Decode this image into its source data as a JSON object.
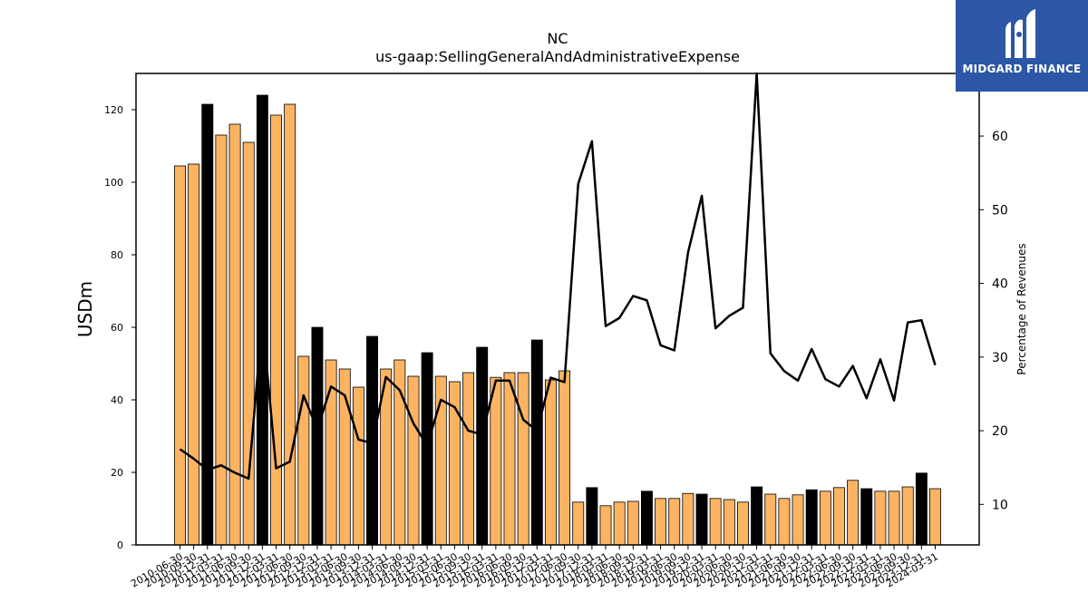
{
  "chart_data": {
    "type": "bar",
    "title": "NC",
    "subtitle": "us-gaap:SellingGeneralAndAdministrativeExpense",
    "ylabel": "USDm",
    "y2label": "Percentage of Revenues",
    "ylim": [
      0,
      130
    ],
    "y2lim": [
      4.5,
      68.5
    ],
    "yticks": [
      0,
      20,
      40,
      60,
      80,
      100,
      120
    ],
    "y2ticks": [
      10,
      20,
      30,
      40,
      50,
      60
    ],
    "categories": [
      "2010-06-30",
      "2010-09-30",
      "2010-12-31",
      "2011-03-31",
      "2011-06-30",
      "2011-09-30",
      "2011-12-31",
      "2012-03-31",
      "2012-06-30",
      "2012-09-30",
      "2012-12-31",
      "2013-03-31",
      "2013-06-30",
      "2013-09-30",
      "2013-12-31",
      "2014-03-31",
      "2014-06-30",
      "2014-09-30",
      "2014-12-31",
      "2015-03-31",
      "2015-06-30",
      "2015-09-30",
      "2015-12-31",
      "2016-03-31",
      "2016-06-30",
      "2016-09-30",
      "2016-12-31",
      "2017-03-31",
      "2017-06-30",
      "2017-09-30",
      "2017-12-31",
      "2018-03-31",
      "2018-06-30",
      "2018-09-30",
      "2018-12-31",
      "2019-03-31",
      "2019-06-30",
      "2019-09-30",
      "2019-12-31",
      "2020-03-31",
      "2020-06-30",
      "2020-09-30",
      "2020-12-31",
      "2021-03-31",
      "2021-06-30",
      "2021-09-30",
      "2021-12-31",
      "2022-03-31",
      "2022-06-30",
      "2022-09-30",
      "2022-12-31",
      "2023-03-31",
      "2023-06-30",
      "2023-09-30",
      "2023-12-31",
      "2024-03-31"
    ],
    "series": [
      {
        "kind": "bar",
        "values": [
          104.5,
          105,
          121.5,
          113,
          116,
          111,
          124,
          118.5,
          121.5,
          52,
          60,
          51,
          48.5,
          43.5,
          57.5,
          48.5,
          51,
          46.5,
          53,
          46.5,
          45,
          47.5,
          54.5,
          46.2,
          47.5,
          47.5,
          56.5,
          45.5,
          48,
          11.8,
          15.8,
          10.8,
          11.8,
          12,
          14.8,
          12.8,
          12.8,
          14.2,
          14,
          12.8,
          12.5,
          11.8,
          16,
          14,
          12.8,
          13.8,
          15.2,
          14.8,
          15.8,
          17.8,
          15.5,
          14.8,
          14.8,
          16,
          19.8,
          15.5
        ],
        "highlight": [
          false,
          false,
          true,
          false,
          false,
          false,
          true,
          false,
          false,
          false,
          true,
          false,
          false,
          false,
          true,
          false,
          false,
          false,
          true,
          false,
          false,
          false,
          true,
          false,
          false,
          false,
          true,
          false,
          false,
          false,
          true,
          false,
          false,
          false,
          true,
          false,
          false,
          false,
          true,
          false,
          false,
          false,
          true,
          false,
          false,
          false,
          true,
          false,
          false,
          false,
          true,
          false,
          false,
          false,
          true,
          false
        ]
      },
      {
        "kind": "line",
        "axis": "right",
        "values": [
          17.5,
          16.2,
          14.7,
          15.3,
          14.3,
          13.5,
          35.2,
          14.9,
          15.8,
          24.8,
          20.2,
          26,
          24.8,
          18.8,
          18.3,
          27.3,
          25.5,
          21,
          18,
          24.2,
          23.2,
          20,
          19.5,
          26.8,
          26.8,
          21.5,
          20,
          27.2,
          26.6,
          53.5,
          59.3,
          34.2,
          35.3,
          38.3,
          37.7,
          31.6,
          30.9,
          44.2,
          51.9,
          33.9,
          35.6,
          36.7,
          68.5,
          30.5,
          28.1,
          26.8,
          31.1,
          27,
          26,
          28.8,
          24.4,
          29.7,
          24.1,
          34.7,
          35,
          28.9
        ]
      }
    ],
    "colors": {
      "bar": "#fdb462",
      "bar_highlight": "#000000",
      "line": "#000000",
      "axis": "#000000"
    },
    "grid": false,
    "legend": "none"
  },
  "logo": {
    "text": "MIDGARD FINANCE",
    "background": "#2b57a6"
  }
}
